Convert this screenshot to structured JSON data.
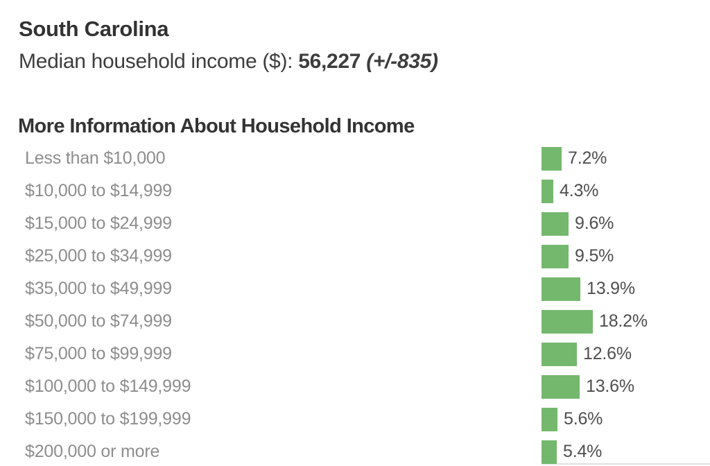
{
  "page": {
    "title": "South Carolina",
    "subtitle_label": "Median household income ($): ",
    "subtitle_value": "56,227",
    "subtitle_moe": " (+/-835)",
    "section_title": "More Information About Household Income"
  },
  "colors": {
    "bar_green": "#74b86e",
    "category_label_gray": "#8d8d8d",
    "value_label_gray": "#4e4e4e",
    "title_dark": "#323232",
    "axis_line_gray": "#e1e1e1"
  },
  "chart_data": {
    "type": "bar",
    "orientation": "horizontal",
    "title": "More Information About Household Income",
    "categories": [
      "Less than $10,000",
      "$10,000 to $14,999",
      "$15,000 to $24,999",
      "$25,000 to $34,999",
      "$35,000 to $49,999",
      "$50,000 to $74,999",
      "$75,000 to $99,999",
      "$100,000 to $149,999",
      "$150,000 to $199,999",
      "$200,000 or more"
    ],
    "values": [
      7.2,
      4.3,
      9.6,
      9.5,
      13.9,
      18.2,
      12.6,
      13.6,
      5.6,
      5.4
    ],
    "value_labels": [
      "7.2%",
      "4.3%",
      "9.6%",
      "9.5%",
      "13.9%",
      "18.2%",
      "12.6%",
      "13.6%",
      "5.6%",
      "5.4%"
    ],
    "unit": "%",
    "bar_color": "#74b86e",
    "value_axis_visible": false,
    "gridlines": false,
    "value_labels_position": "end-of-bar"
  }
}
